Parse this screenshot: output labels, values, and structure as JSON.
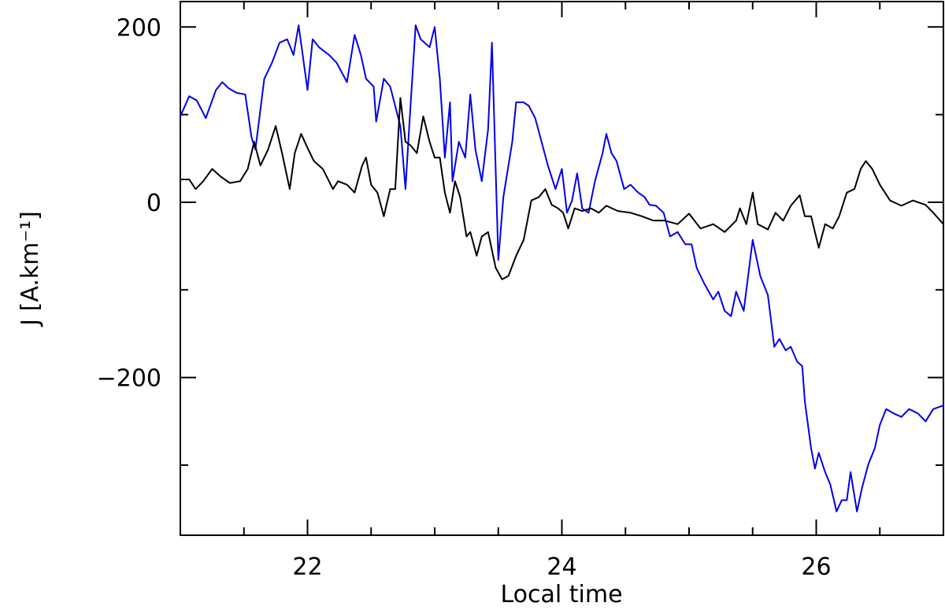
{
  "chart_data": {
    "type": "line",
    "xlabel": "Local time",
    "ylabel": "J [A.km⁻¹]",
    "xlim": [
      21,
      27
    ],
    "ylim": [
      -380,
      229
    ],
    "xticks": [
      22,
      24,
      26
    ],
    "xminorticks": [
      21.5,
      22.5,
      23,
      23.5,
      24.5,
      25,
      25.5,
      26.5
    ],
    "yticks": [
      {
        "value": -200,
        "label": "−200"
      },
      0,
      200
    ],
    "yminorticks": [
      -300,
      -100,
      100
    ],
    "series": [
      {
        "name": "blue",
        "color": "#0000ee",
        "x": [
          21.0,
          21.07,
          21.13,
          21.2,
          21.28,
          21.33,
          21.38,
          21.44,
          21.51,
          21.56,
          21.59,
          21.66,
          21.72,
          21.78,
          21.84,
          21.89,
          21.93,
          22.0,
          22.04,
          22.09,
          22.17,
          22.23,
          22.31,
          22.37,
          22.42,
          22.46,
          22.52,
          22.54,
          22.6,
          22.65,
          22.73,
          22.77,
          22.8,
          22.85,
          22.89,
          22.96,
          23.0,
          23.04,
          23.08,
          23.12,
          23.14,
          23.19,
          23.24,
          23.28,
          23.32,
          23.37,
          23.42,
          23.45,
          23.5,
          23.54,
          23.61,
          23.64,
          23.7,
          23.74,
          23.79,
          23.84,
          23.89,
          23.95,
          24.0,
          24.04,
          24.08,
          24.12,
          24.16,
          24.21,
          24.26,
          24.32,
          24.35,
          24.39,
          24.43,
          24.49,
          24.54,
          24.6,
          24.65,
          24.69,
          24.74,
          24.8,
          24.85,
          24.91,
          24.97,
          25.02,
          25.06,
          25.12,
          25.19,
          25.23,
          25.28,
          25.33,
          25.37,
          25.43,
          25.5,
          25.56,
          25.62,
          25.67,
          25.71,
          25.76,
          25.8,
          25.85,
          25.89,
          25.91,
          25.96,
          25.99,
          26.02,
          26.07,
          26.11,
          26.16,
          26.2,
          26.24,
          26.27,
          26.32,
          26.36,
          26.41,
          26.46,
          26.5,
          26.55,
          26.61,
          26.67,
          26.73,
          26.8,
          26.86,
          26.92,
          27.0
        ],
        "values": [
          98,
          121,
          116,
          96,
          128,
          137,
          130,
          125,
          123,
          74,
          60,
          141,
          159,
          182,
          186,
          168,
          202,
          128,
          186,
          177,
          168,
          159,
          137,
          191,
          168,
          141,
          132,
          92,
          141,
          132,
          87,
          15,
          87,
          202,
          186,
          177,
          200,
          141,
          51,
          114,
          24,
          69,
          51,
          123,
          60,
          24,
          83,
          182,
          -66,
          6,
          69,
          114,
          114,
          110,
          96,
          69,
          42,
          15,
          38,
          -12,
          2,
          33,
          -7,
          -12,
          24,
          56,
          78,
          56,
          47,
          15,
          20,
          11,
          6,
          -3,
          -4,
          -12,
          -39,
          -34,
          -48,
          -48,
          -75,
          -93,
          -111,
          -102,
          -124,
          -130,
          -102,
          -124,
          -43,
          -84,
          -106,
          -165,
          -156,
          -169,
          -165,
          -182,
          -187,
          -227,
          -281,
          -304,
          -286,
          -308,
          -322,
          -353,
          -340,
          -340,
          -308,
          -353,
          -326,
          -299,
          -281,
          -254,
          -236,
          -241,
          -245,
          -236,
          -241,
          -250,
          -236,
          -232
        ]
      },
      {
        "name": "black",
        "color": "#000000",
        "x": [
          21.0,
          21.07,
          21.12,
          21.18,
          21.25,
          21.32,
          21.39,
          21.47,
          21.53,
          21.58,
          21.63,
          21.69,
          21.75,
          21.8,
          21.86,
          21.9,
          21.95,
          22.0,
          22.05,
          22.12,
          22.2,
          22.24,
          22.31,
          22.37,
          22.43,
          22.46,
          22.5,
          22.55,
          22.6,
          22.65,
          22.69,
          22.73,
          22.77,
          22.81,
          22.86,
          22.91,
          22.96,
          23.0,
          23.04,
          23.08,
          23.12,
          23.16,
          23.2,
          23.25,
          23.28,
          23.33,
          23.37,
          23.42,
          23.48,
          23.53,
          23.58,
          23.64,
          23.7,
          23.76,
          23.82,
          23.87,
          23.92,
          23.97,
          24.01,
          24.05,
          24.1,
          24.16,
          24.23,
          24.29,
          24.35,
          24.44,
          24.54,
          24.63,
          24.72,
          24.81,
          24.91,
          25.0,
          25.09,
          25.19,
          25.28,
          25.37,
          25.4,
          25.45,
          25.5,
          25.54,
          25.62,
          25.68,
          25.74,
          25.8,
          25.87,
          25.91,
          25.96,
          26.02,
          26.07,
          26.13,
          26.18,
          26.24,
          26.3,
          26.35,
          26.39,
          26.44,
          26.5,
          26.58,
          26.67,
          26.76,
          26.86,
          26.92,
          27.0
        ],
        "values": [
          26,
          26,
          15,
          24,
          38,
          29,
          22,
          24,
          38,
          69,
          42,
          60,
          87,
          56,
          15,
          56,
          78,
          62,
          47,
          38,
          15,
          24,
          20,
          11,
          42,
          51,
          20,
          11,
          -16,
          15,
          15,
          119,
          69,
          65,
          56,
          98,
          69,
          51,
          51,
          11,
          -12,
          24,
          6,
          -39,
          -34,
          -61,
          -39,
          -34,
          -75,
          -88,
          -84,
          -61,
          -43,
          2,
          6,
          15,
          -3,
          -7,
          -12,
          -30,
          -7,
          -10,
          -7,
          -12,
          -4,
          -10,
          -12,
          -16,
          -21,
          -21,
          -25,
          -13,
          -30,
          -25,
          -34,
          -21,
          -7,
          -25,
          11,
          -25,
          -31,
          -12,
          -21,
          -4,
          8,
          -16,
          -16,
          -52,
          -25,
          -30,
          -16,
          11,
          15,
          38,
          47,
          38,
          20,
          2,
          -4,
          2,
          -3,
          -12,
          -25
        ]
      }
    ]
  }
}
